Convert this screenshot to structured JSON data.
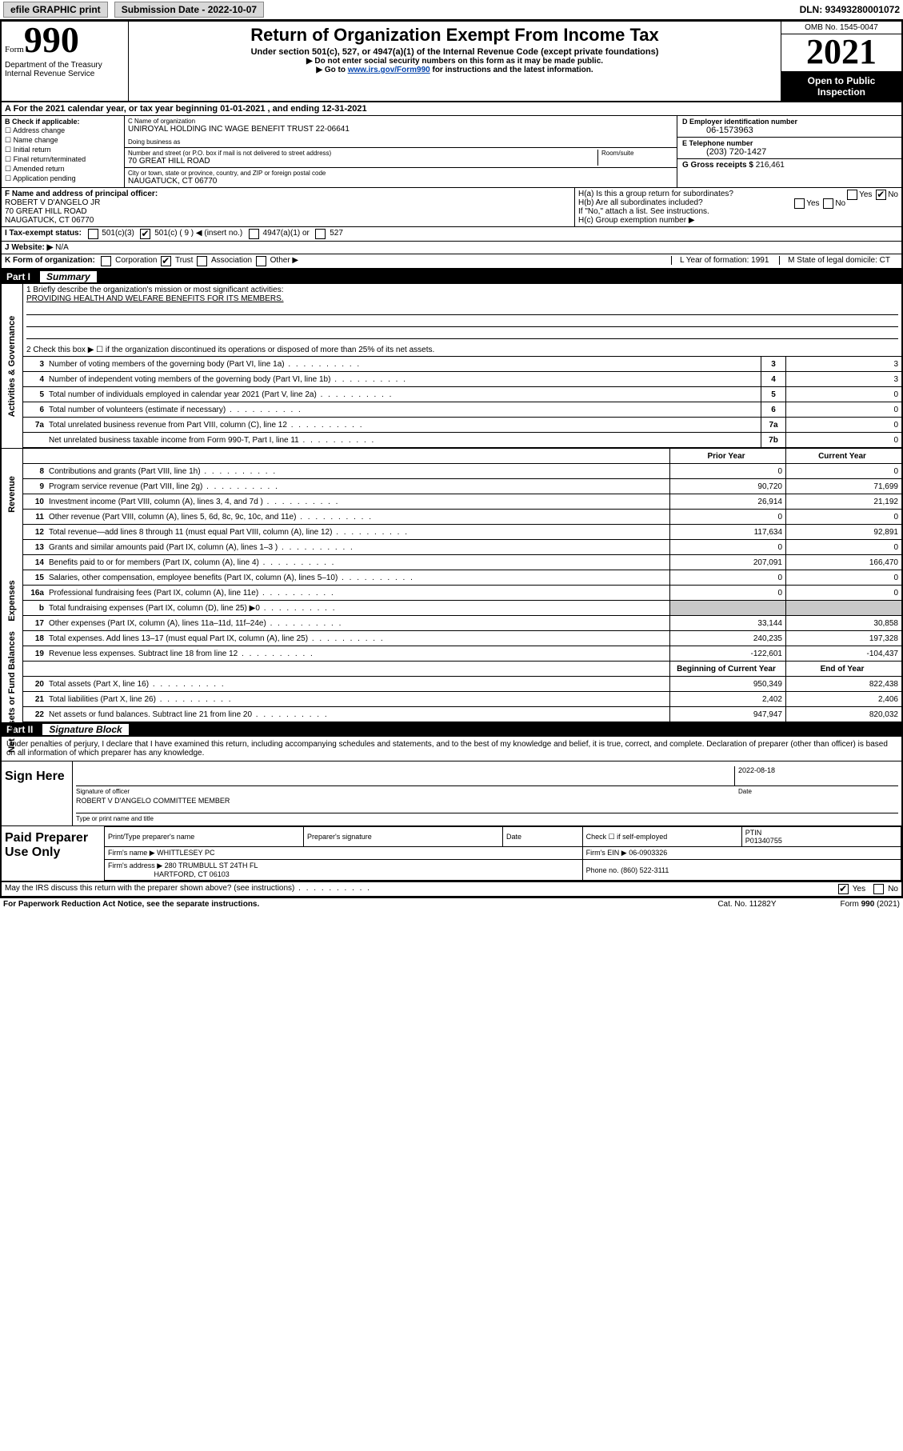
{
  "topbar": {
    "efile": "efile GRAPHIC print",
    "sub_label": "Submission Date - 2022-10-07",
    "dln": "DLN: 93493280001072"
  },
  "header": {
    "form_word": "Form",
    "form_num": "990",
    "dept": "Department of the Treasury Internal Revenue Service",
    "title": "Return of Organization Exempt From Income Tax",
    "sub1": "Under section 501(c), 527, or 4947(a)(1) of the Internal Revenue Code (except private foundations)",
    "sub2": "▶ Do not enter social security numbers on this form as it may be made public.",
    "sub3_pre": "▶ Go to ",
    "sub3_link": "www.irs.gov/Form990",
    "sub3_post": " for instructions and the latest information.",
    "omb": "OMB No. 1545-0047",
    "year": "2021",
    "open1": "Open to Public",
    "open2": "Inspection"
  },
  "row_a": "A For the 2021 calendar year, or tax year beginning 01-01-2021   , and ending 12-31-2021",
  "col_b": {
    "title": "B Check if applicable:",
    "i1": "Address change",
    "i2": "Name change",
    "i3": "Initial return",
    "i4": "Final return/terminated",
    "i5": "Amended return",
    "i6": "Application pending"
  },
  "col_c": {
    "name_lbl": "C Name of organization",
    "name": "UNIROYAL HOLDING INC WAGE BENEFIT TRUST 22-06641",
    "dba_lbl": "Doing business as",
    "dba": "",
    "addr_lbl": "Number and street (or P.O. box if mail is not delivered to street address)",
    "room_lbl": "Room/suite",
    "addr": "70 GREAT HILL ROAD",
    "city_lbl": "City or town, state or province, country, and ZIP or foreign postal code",
    "city": "NAUGATUCK, CT  06770"
  },
  "col_de": {
    "d_lbl": "D Employer identification number",
    "d_val": "06-1573963",
    "e_lbl": "E Telephone number",
    "e_val": "(203) 720-1427",
    "g_lbl": "G Gross receipts $ ",
    "g_val": "216,461"
  },
  "block_f": {
    "lbl": "F Name and address of principal officer:",
    "l1": "ROBERT V D'ANGELO JR",
    "l2": "70 GREAT HILL ROAD",
    "l3": "NAUGATUCK, CT  06770"
  },
  "block_h": {
    "ha": "H(a)  Is this a group return for subordinates?",
    "hb": "H(b)  Are all subordinates included?",
    "hb2": "If \"No,\" attach a list. See instructions.",
    "hc": "H(c)  Group exemption number ▶"
  },
  "row_i": {
    "lbl": "I   Tax-exempt status:",
    "o1": "501(c)(3)",
    "o2": "501(c) ( 9 ) ◀ (insert no.)",
    "o3": "4947(a)(1) or",
    "o4": "527"
  },
  "row_j": {
    "lbl": "J   Website: ▶",
    "val": "N/A"
  },
  "row_k": {
    "lbl": "K Form of organization:",
    "o1": "Corporation",
    "o2": "Trust",
    "o3": "Association",
    "o4": "Other ▶",
    "l": "L Year of formation: 1991",
    "m": "M State of legal domicile: CT"
  },
  "part1": {
    "label": "Part I",
    "title": "Summary"
  },
  "mission": {
    "q1": "1   Briefly describe the organization's mission or most significant activities:",
    "text": "PROVIDING HEALTH AND WELFARE BENEFITS FOR ITS MEMBERS.",
    "q2": "2   Check this box ▶ ☐  if the organization discontinued its operations or disposed of more than 25% of its net assets."
  },
  "gov_rows": [
    {
      "n": "3",
      "d": "Number of voting members of the governing body (Part VI, line 1a)",
      "b": "3",
      "v": "3"
    },
    {
      "n": "4",
      "d": "Number of independent voting members of the governing body (Part VI, line 1b)",
      "b": "4",
      "v": "3"
    },
    {
      "n": "5",
      "d": "Total number of individuals employed in calendar year 2021 (Part V, line 2a)",
      "b": "5",
      "v": "0"
    },
    {
      "n": "6",
      "d": "Total number of volunteers (estimate if necessary)",
      "b": "6",
      "v": "0"
    },
    {
      "n": "7a",
      "d": "Total unrelated business revenue from Part VIII, column (C), line 12",
      "b": "7a",
      "v": "0"
    },
    {
      "n": "",
      "d": "Net unrelated business taxable income from Form 990-T, Part I, line 11",
      "b": "7b",
      "v": "0"
    }
  ],
  "col_headers": {
    "prior": "Prior Year",
    "current": "Current Year",
    "beg": "Beginning of Current Year",
    "end": "End of Year"
  },
  "rev_rows": [
    {
      "n": "8",
      "d": "Contributions and grants (Part VIII, line 1h)",
      "p": "0",
      "c": "0"
    },
    {
      "n": "9",
      "d": "Program service revenue (Part VIII, line 2g)",
      "p": "90,720",
      "c": "71,699"
    },
    {
      "n": "10",
      "d": "Investment income (Part VIII, column (A), lines 3, 4, and 7d )",
      "p": "26,914",
      "c": "21,192"
    },
    {
      "n": "11",
      "d": "Other revenue (Part VIII, column (A), lines 5, 6d, 8c, 9c, 10c, and 11e)",
      "p": "0",
      "c": "0"
    },
    {
      "n": "12",
      "d": "Total revenue—add lines 8 through 11 (must equal Part VIII, column (A), line 12)",
      "p": "117,634",
      "c": "92,891"
    }
  ],
  "exp_rows": [
    {
      "n": "13",
      "d": "Grants and similar amounts paid (Part IX, column (A), lines 1–3 )",
      "p": "0",
      "c": "0"
    },
    {
      "n": "14",
      "d": "Benefits paid to or for members (Part IX, column (A), line 4)",
      "p": "207,091",
      "c": "166,470"
    },
    {
      "n": "15",
      "d": "Salaries, other compensation, employee benefits (Part IX, column (A), lines 5–10)",
      "p": "0",
      "c": "0"
    },
    {
      "n": "16a",
      "d": "Professional fundraising fees (Part IX, column (A), line 11e)",
      "p": "0",
      "c": "0"
    },
    {
      "n": "b",
      "d": "Total fundraising expenses (Part IX, column (D), line 25) ▶0",
      "p": "",
      "c": "",
      "shade": true
    },
    {
      "n": "17",
      "d": "Other expenses (Part IX, column (A), lines 11a–11d, 11f–24e)",
      "p": "33,144",
      "c": "30,858"
    },
    {
      "n": "18",
      "d": "Total expenses. Add lines 13–17 (must equal Part IX, column (A), line 25)",
      "p": "240,235",
      "c": "197,328"
    },
    {
      "n": "19",
      "d": "Revenue less expenses. Subtract line 18 from line 12",
      "p": "-122,601",
      "c": "-104,437"
    }
  ],
  "na_rows": [
    {
      "n": "20",
      "d": "Total assets (Part X, line 16)",
      "p": "950,349",
      "c": "822,438"
    },
    {
      "n": "21",
      "d": "Total liabilities (Part X, line 26)",
      "p": "2,402",
      "c": "2,406"
    },
    {
      "n": "22",
      "d": "Net assets or fund balances. Subtract line 21 from line 20",
      "p": "947,947",
      "c": "820,032"
    }
  ],
  "side_labels": {
    "gov": "Activities & Governance",
    "rev": "Revenue",
    "exp": "Expenses",
    "na": "Net Assets or Fund Balances"
  },
  "part2": {
    "label": "Part II",
    "title": "Signature Block"
  },
  "sig_decl": "Under penalties of perjury, I declare that I have examined this return, including accompanying schedules and statements, and to the best of my knowledge and belief, it is true, correct, and complete. Declaration of preparer (other than officer) is based on all information of which preparer has any knowledge.",
  "sign": {
    "lab": "Sign Here",
    "sig_lbl": "Signature of officer",
    "date": "2022-08-18",
    "date_lbl": "Date",
    "name": "ROBERT V D'ANGELO  COMMITTEE MEMBER",
    "name_lbl": "Type or print name and title"
  },
  "prep": {
    "lab": "Paid Preparer Use Only",
    "h1": "Print/Type preparer's name",
    "h2": "Preparer's signature",
    "h3": "Date",
    "h4_a": "Check ☐ if self-employed",
    "h4_b": "PTIN",
    "ptin": "P01340755",
    "firm_lbl": "Firm's name    ▶",
    "firm": "WHITTLESEY PC",
    "ein_lbl": "Firm's EIN ▶",
    "ein": "06-0903326",
    "addr_lbl": "Firm's address ▶",
    "addr1": "280 TRUMBULL ST 24TH FL",
    "addr2": "HARTFORD, CT  06103",
    "ph_lbl": "Phone no.",
    "ph": "(860) 522-3111"
  },
  "foot": {
    "q": "May the IRS discuss this return with the preparer shown above? (see instructions)",
    "yes": "Yes",
    "no": "No",
    "pra": "For Paperwork Reduction Act Notice, see the separate instructions.",
    "cat": "Cat. No. 11282Y",
    "form": "Form 990 (2021)"
  }
}
